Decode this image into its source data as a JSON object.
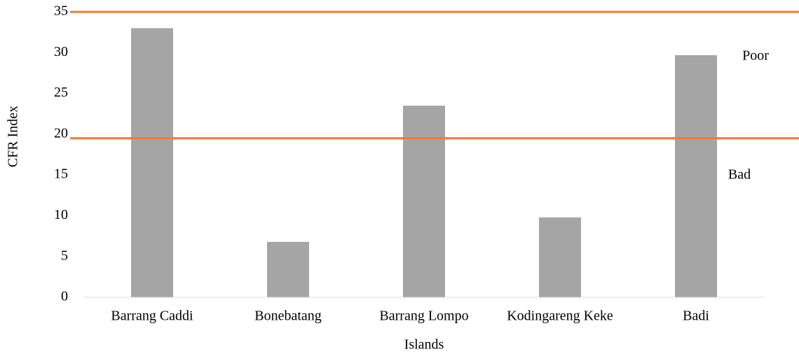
{
  "chart_data": {
    "type": "bar",
    "categories": [
      "Barrang Caddi",
      "Bonebatang",
      "Barrang Lompo",
      "Kodingareng Keke",
      "Badi"
    ],
    "values": [
      33,
      6.8,
      23.5,
      9.8,
      29.7
    ],
    "color": "#a5a5a5",
    "x_label": "Islands",
    "y_label": "CFR Index",
    "ylim": [
      0,
      35
    ],
    "yticks": [
      0,
      5,
      10,
      15,
      20,
      25,
      30,
      35
    ],
    "grid": false,
    "reference_lines": [
      {
        "value": 35,
        "color": "#ed7d31"
      },
      {
        "value": 19.5,
        "color": "#ed7d31"
      }
    ],
    "annotations": [
      "Poor",
      "Bad"
    ]
  }
}
